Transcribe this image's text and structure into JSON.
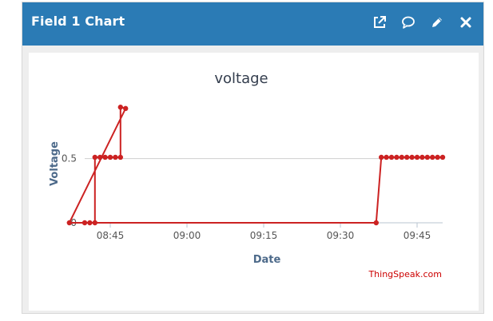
{
  "widget": {
    "title": "Field 1 Chart",
    "icons": [
      "external-link-icon",
      "comment-icon",
      "pencil-icon",
      "close-icon"
    ],
    "header_color": "#2b7bb5"
  },
  "credit": "ThingSpeak.com",
  "chart_data": {
    "type": "line",
    "title": "voltage",
    "xlabel": "Date",
    "ylabel": "Voltage",
    "x_ticks": [
      "08:45",
      "09:00",
      "09:15",
      "09:30",
      "09:45"
    ],
    "y_ticks": [
      "0",
      "0.5"
    ],
    "xlim": [
      "08:40",
      "09:50"
    ],
    "ylim": [
      0,
      0.92
    ],
    "grid": true,
    "series_color": "#cc2222",
    "series": [
      {
        "x": [
          "08:40",
          "08:41",
          "08:42",
          "08:42",
          "08:43",
          "08:44",
          "08:45",
          "08:46",
          "08:47",
          "08:47",
          "08:48",
          "08:37",
          "09:37",
          "09:38",
          "09:39",
          "09:40",
          "09:41",
          "09:42",
          "09:43",
          "09:44",
          "09:45",
          "09:46",
          "09:47",
          "09:48",
          "09:49",
          "09:50"
        ],
        "y": [
          0,
          0,
          0,
          0.51,
          0.51,
          0.51,
          0.51,
          0.51,
          0.51,
          0.9,
          0.89,
          0,
          0,
          0.51,
          0.51,
          0.51,
          0.51,
          0.51,
          0.51,
          0.51,
          0.51,
          0.51,
          0.51,
          0.51,
          0.51,
          0.51
        ]
      }
    ]
  }
}
